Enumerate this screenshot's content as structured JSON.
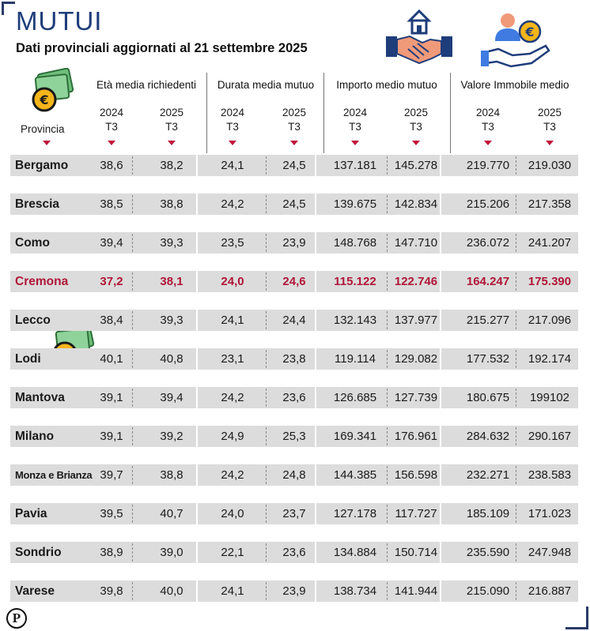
{
  "header": {
    "title": "MUTUI",
    "subtitle": "Dati provinciali aggiornati al 21 settembre 2025"
  },
  "groups": [
    {
      "label": "Età media richiedenti",
      "years": [
        "2024 T3",
        "2025 T3"
      ]
    },
    {
      "label": "Durata media mutuo",
      "years": [
        "2024 T3",
        "2025 T3"
      ]
    },
    {
      "label": "Importo medio mutuo",
      "years": [
        "2024 T3",
        "2025 T3"
      ]
    },
    {
      "label": "Valore Immobile medio",
      "years": [
        "2024 T3",
        "2025 T3"
      ]
    }
  ],
  "year_top": "2024",
  "year_top2": "2025",
  "quarter": "T3",
  "provincia_label": "Provincia",
  "rows": [
    {
      "name": "Bergamo",
      "values": [
        "38,6",
        "38,2",
        "24,1",
        "24,5",
        "137.181",
        "145.278",
        "219.770",
        "219.030"
      ],
      "highlight": false
    },
    {
      "name": "Brescia",
      "values": [
        "38,5",
        "38,8",
        "24,2",
        "24,5",
        "139.675",
        "142.834",
        "215.206",
        "217.358"
      ],
      "highlight": false
    },
    {
      "name": "Como",
      "values": [
        "39,4",
        "39,3",
        "23,5",
        "23,9",
        "148.768",
        "147.710",
        "236.072",
        "241.207"
      ],
      "highlight": false
    },
    {
      "name": "Cremona",
      "values": [
        "37,2",
        "38,1",
        "24,0",
        "24,6",
        "115.122",
        "122.746",
        "164.247",
        "175.390"
      ],
      "highlight": true
    },
    {
      "name": "Lecco",
      "values": [
        "38,4",
        "39,3",
        "24,1",
        "24,4",
        "132.143",
        "137.977",
        "215.277",
        "217.096"
      ],
      "highlight": false
    },
    {
      "name": "Lodi",
      "values": [
        "40,1",
        "40,8",
        "23,1",
        "23,8",
        "119.114",
        "129.082",
        "177.532",
        "192.174"
      ],
      "highlight": false
    },
    {
      "name": "Mantova",
      "values": [
        "39,1",
        "39,4",
        "24,2",
        "23,6",
        "126.685",
        "127.739",
        "180.675",
        "199102"
      ],
      "highlight": false
    },
    {
      "name": "Milano",
      "values": [
        "39,1",
        "39,2",
        "24,9",
        "25,3",
        "169.341",
        "176.961",
        "284.632",
        "290.167"
      ],
      "highlight": false
    },
    {
      "name": "Monza e Brianza",
      "values": [
        "39,7",
        "38,8",
        "24,2",
        "24,8",
        "144.385",
        "156.598",
        "232.271",
        "238.583"
      ],
      "highlight": false
    },
    {
      "name": "Pavia",
      "values": [
        "39,5",
        "40,7",
        "24,0",
        "23,7",
        "127.178",
        "117.727",
        "185.109",
        "171.023"
      ],
      "highlight": false
    },
    {
      "name": "Sondrio",
      "values": [
        "38,9",
        "39,0",
        "22,1",
        "23,6",
        "134.884",
        "150.714",
        "235.590",
        "247.948"
      ],
      "highlight": false
    },
    {
      "name": "Varese",
      "values": [
        "39,8",
        "40,0",
        "24,1",
        "23,9",
        "138.734",
        "141.944",
        "215.090",
        "216.887"
      ],
      "highlight": false
    }
  ],
  "logo": {
    "letter": "P"
  },
  "colors": {
    "title": "#1f3d7a",
    "highlight": "#b01538",
    "row_bg": "#dcdcdc",
    "arrow": "#c0163a"
  },
  "icons": [
    "house-handshake-icon",
    "hand-coin-person-icon",
    "money-coin-icon"
  ]
}
